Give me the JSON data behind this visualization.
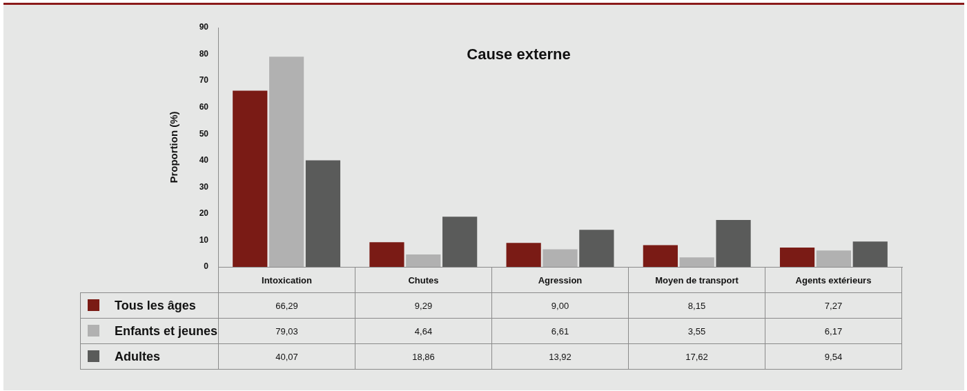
{
  "chart_data": {
    "type": "bar",
    "title": "Cause externe",
    "ylabel": "Proportion (%)",
    "categories": [
      "Intoxication",
      "Chutes",
      "Agression",
      "Moyen de transport",
      "Agents extérieurs"
    ],
    "series": [
      {
        "name": "Tous les âges",
        "color": "#7a1b15",
        "values": [
          66.29,
          9.29,
          9.0,
          8.15,
          7.27
        ],
        "value_labels": [
          "66,29",
          "9,29",
          "9,00",
          "8,15",
          "7,27"
        ]
      },
      {
        "name": "Enfants et jeunes",
        "color": "#b1b1b1",
        "values": [
          79.03,
          4.64,
          6.61,
          3.55,
          6.17
        ],
        "value_labels": [
          "79,03",
          "4,64",
          "6,61",
          "3,55",
          "6,17"
        ]
      },
      {
        "name": "Adultes",
        "color": "#5a5b5a",
        "values": [
          40.07,
          18.86,
          13.92,
          17.62,
          9.54
        ],
        "value_labels": [
          "40,07",
          "18,86",
          "13,92",
          "17,62",
          "9,54"
        ]
      }
    ],
    "ylim": [
      0,
      90
    ],
    "yticks": [
      0,
      10,
      20,
      30,
      40,
      50,
      60,
      70,
      80,
      90
    ],
    "grid": false,
    "legend": "bottom left"
  }
}
